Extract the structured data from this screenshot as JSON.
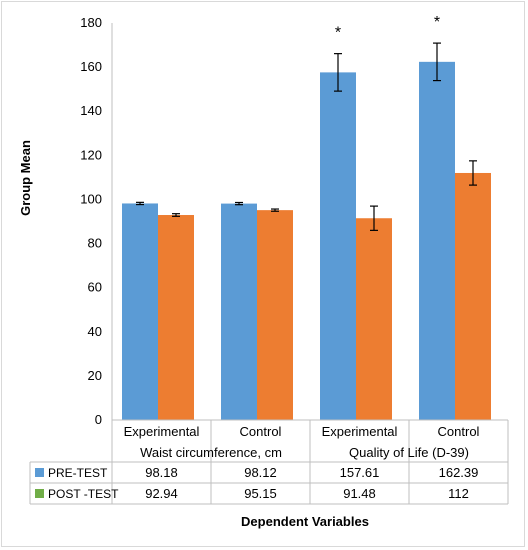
{
  "chart_data": {
    "type": "bar",
    "title": "",
    "ylabel": "Group Mean",
    "xlabel": "Dependent Variables",
    "ylim": [
      0,
      180
    ],
    "yticks": [
      0,
      20,
      40,
      60,
      80,
      100,
      120,
      140,
      160,
      180
    ],
    "grid": false,
    "legend_placement": "data-table-left",
    "categories": [
      "Experimental",
      "Control",
      "Experimental",
      "Control"
    ],
    "groups": [
      "Waist circumference, cm",
      "Quality of Life (D-39)"
    ],
    "series": [
      {
        "name": "PRE-TEST",
        "color": "#5b9bd5",
        "values": [
          98.18,
          98.12,
          157.61,
          162.39
        ],
        "value_labels": [
          "98.18",
          "98.12",
          "157.61",
          "162.39"
        ],
        "error": [
          0.5,
          0.5,
          8.5,
          8.5
        ]
      },
      {
        "name": "POST -TEST",
        "color": "#ed7d31",
        "legend_color": "#70ad47",
        "values": [
          92.94,
          95.15,
          91.48,
          112
        ],
        "value_labels": [
          "92.94",
          "95.15",
          "91.48",
          "112"
        ],
        "error": [
          0.6,
          0.5,
          5.5,
          5.5
        ]
      }
    ],
    "annotations": [
      "*",
      "*"
    ],
    "annotation_categories": [
      2,
      3
    ]
  }
}
